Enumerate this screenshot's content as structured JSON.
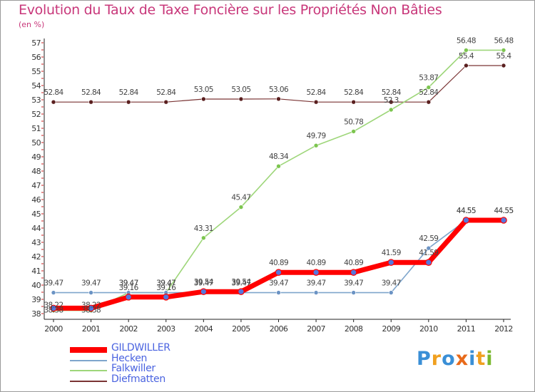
{
  "title": "Evolution du Taux de Taxe Foncière sur les Propriétés Non Bâties",
  "unit": "(en %)",
  "logo": {
    "text": "Proxiti",
    "colors": [
      "#3a8fd6",
      "#f0a020",
      "#3a8fd6",
      "#e86a1a",
      "#3a8fd6",
      "#f0a020",
      "#7ab82e"
    ]
  },
  "chart_data": {
    "type": "line",
    "title": "Evolution du Taux de Taxe Foncière sur les Propriétés Non Bâties",
    "ylabel": "(en %)",
    "xlabel": "",
    "ylim": [
      38,
      57
    ],
    "yticks": [
      "38",
      "39",
      "40",
      "41",
      "42",
      "43",
      "44",
      "45",
      "46",
      "47",
      "48",
      "49",
      "50",
      "51",
      "52",
      "53",
      "54",
      "55",
      "56",
      "57"
    ],
    "categories": [
      "2000",
      "2001",
      "2002",
      "2003",
      "2004",
      "2005",
      "2006",
      "2007",
      "2008",
      "2009",
      "2010",
      "2011",
      "2012"
    ],
    "series": [
      {
        "name": "GILDWILLER",
        "color": "#ff0000",
        "values": [
          38.38,
          38.38,
          39.16,
          39.16,
          39.54,
          39.54,
          40.89,
          40.89,
          40.89,
          41.59,
          41.59,
          44.55,
          44.55
        ],
        "labels": [
          "38.38",
          "38.38",
          "39.16",
          "39.16",
          "39.54",
          "39.54",
          "40.89",
          "40.89",
          "40.89",
          "41.59",
          "41.59",
          "44.55",
          "44.55"
        ]
      },
      {
        "name": "Hecken",
        "color": "#7fa6cc",
        "values": [
          39.47,
          39.47,
          39.47,
          39.47,
          39.47,
          39.47,
          39.47,
          39.47,
          39.47,
          39.47,
          42.59,
          44.55,
          44.55
        ],
        "labels": [
          "39.47",
          "39.47",
          "39.47",
          "39.47",
          "39.47",
          "39.47",
          "39.47",
          "39.47",
          "39.47",
          "39.47",
          "42.59",
          "44.55",
          "44.55"
        ]
      },
      {
        "name": "Falkwiller",
        "color": "#9ed67a",
        "values": [
          38.22,
          38.22,
          39.47,
          39.47,
          43.31,
          45.47,
          48.34,
          49.79,
          50.78,
          52.3,
          53.87,
          56.48,
          56.48
        ],
        "labels": [
          "38.22",
          "38.22",
          "39.47",
          "39.47",
          "43.31",
          "45.47",
          "48.34",
          "49.79",
          "50.78",
          "52.3",
          "53.87",
          "56.48",
          "56.48"
        ]
      },
      {
        "name": "Diefmatten",
        "color": "#7a3434",
        "values": [
          52.84,
          52.84,
          52.84,
          52.84,
          53.05,
          53.05,
          53.06,
          52.84,
          52.84,
          52.84,
          52.84,
          55.4,
          55.4
        ],
        "labels": [
          "52.84",
          "52.84",
          "52.84",
          "52.84",
          "53.05",
          "53.05",
          "53.06",
          "52.84",
          "52.84",
          "52.84",
          "52.84",
          "55.4",
          "55.4"
        ]
      }
    ],
    "grid": false,
    "legend": "bottom-left"
  }
}
